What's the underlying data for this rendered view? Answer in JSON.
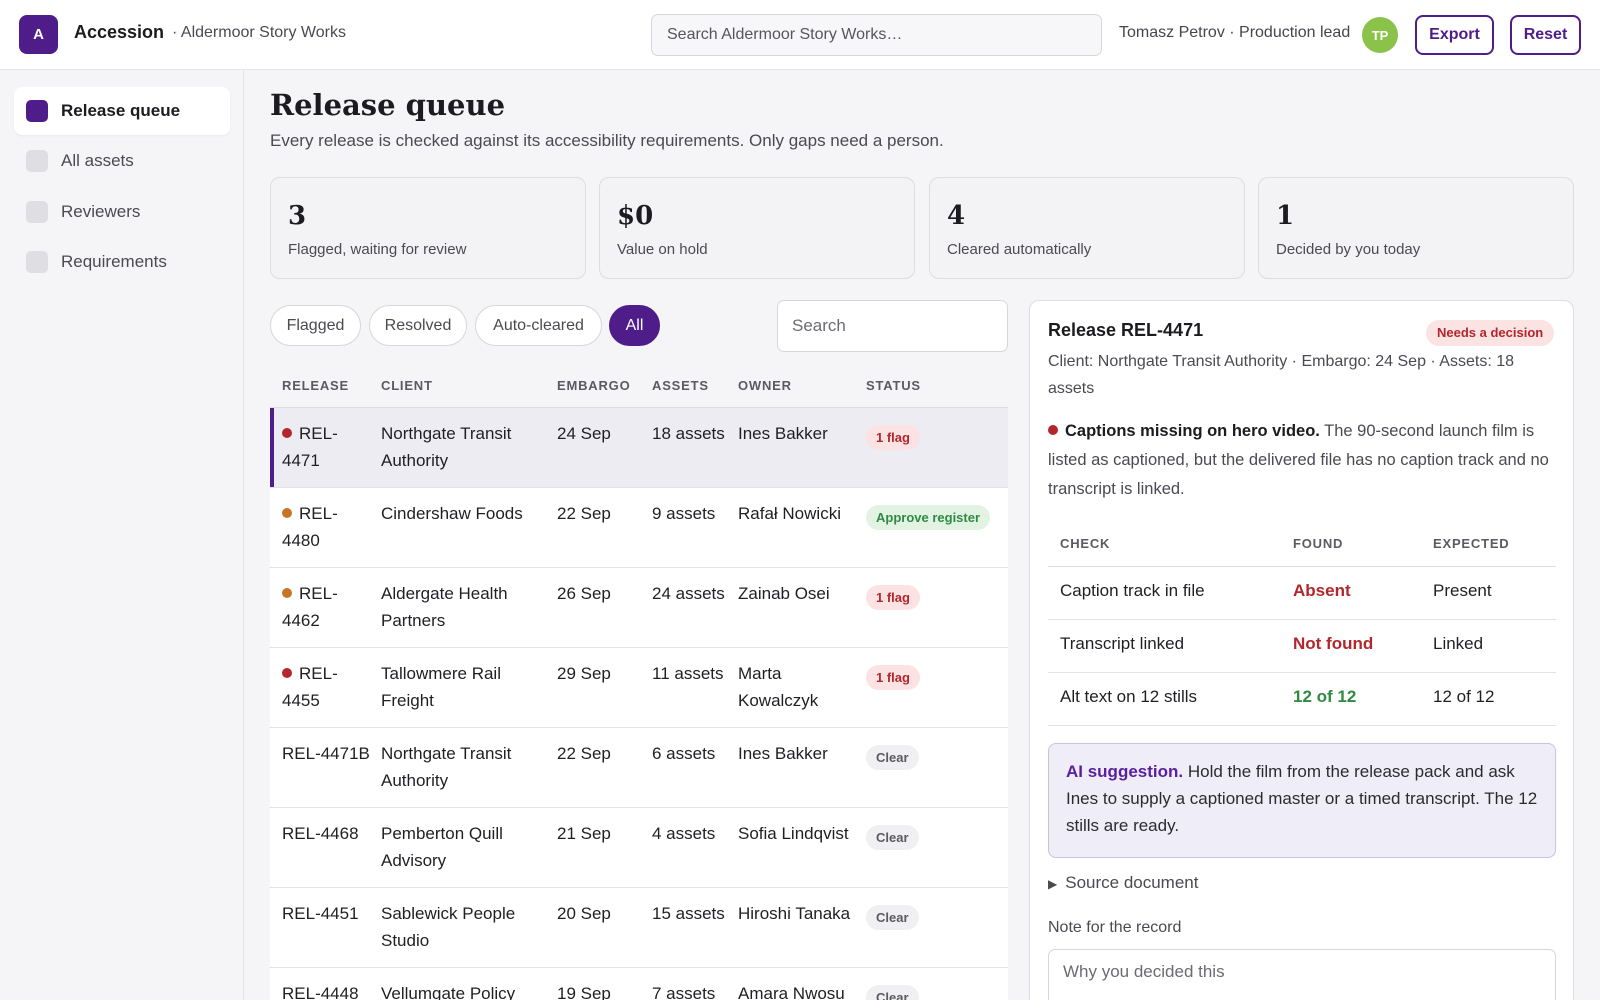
{
  "header": {
    "logo_letter": "A",
    "app_name": "Accession",
    "org": "· Aldermoor Story Works",
    "search_placeholder": "Search Aldermoor Story Works…",
    "user": "Tomasz Petrov · Production lead",
    "avatar_initials": "TP",
    "export_label": "Export",
    "reset_label": "Reset"
  },
  "sidebar": {
    "items": [
      {
        "label": "Release queue",
        "active": true
      },
      {
        "label": "All assets",
        "active": false
      },
      {
        "label": "Reviewers",
        "active": false
      },
      {
        "label": "Requirements",
        "active": false
      }
    ]
  },
  "main": {
    "title": "Release queue",
    "subtitle": "Every release is checked against its accessibility requirements. Only gaps need a person.",
    "stats": [
      {
        "value": "3",
        "label": "Flagged, waiting for review"
      },
      {
        "value": "$0",
        "label": "Value on hold"
      },
      {
        "value": "4",
        "label": "Cleared automatically"
      },
      {
        "value": "1",
        "label": "Decided by you today"
      }
    ],
    "filters": [
      "Flagged",
      "Resolved",
      "Auto-cleared",
      "All"
    ],
    "active_filter": "All",
    "search_placeholder": "Search",
    "columns": [
      "RELEASE",
      "CLIENT",
      "EMBARGO",
      "ASSETS",
      "OWNER",
      "STATUS"
    ],
    "rows": [
      {
        "release": "REL-4471",
        "dot": "#b3262b",
        "client": "Northgate Transit Authority",
        "embargo": "24 Sep",
        "assets": "18 assets",
        "owner": "Ines Bakker",
        "status": "1 flag",
        "status_kind": "flag",
        "selected": true
      },
      {
        "release": "REL-4480",
        "dot": "#c4752a",
        "client": "Cindershaw Foods",
        "embargo": "22 Sep",
        "assets": "9 assets",
        "owner": "Rafał Nowicki",
        "status": "Approve register",
        "status_kind": "approve"
      },
      {
        "release": "REL-4462",
        "dot": "#c4752a",
        "client": "Aldergate Health Partners",
        "embargo": "26 Sep",
        "assets": "24 assets",
        "owner": "Zainab Osei",
        "status": "1 flag",
        "status_kind": "flag"
      },
      {
        "release": "REL-4455",
        "dot": "#b3262b",
        "client": "Tallowmere Rail Freight",
        "embargo": "29 Sep",
        "assets": "11 assets",
        "owner": "Marta Kowalczyk",
        "status": "1 flag",
        "status_kind": "flag"
      },
      {
        "release": "REL-4471B",
        "dot": "",
        "client": "Northgate Transit Authority",
        "embargo": "22 Sep",
        "assets": "6 assets",
        "owner": "Ines Bakker",
        "status": "Clear",
        "status_kind": "clear"
      },
      {
        "release": "REL-4468",
        "dot": "",
        "client": "Pemberton Quill Advisory",
        "embargo": "21 Sep",
        "assets": "4 assets",
        "owner": "Sofia Lindqvist",
        "status": "Clear",
        "status_kind": "clear"
      },
      {
        "release": "REL-4451",
        "dot": "",
        "client": "Sablewick People Studio",
        "embargo": "20 Sep",
        "assets": "15 assets",
        "owner": "Hiroshi Tanaka",
        "status": "Clear",
        "status_kind": "clear"
      },
      {
        "release": "REL-4448",
        "dot": "",
        "client": "Vellumgate Policy",
        "embargo": "19 Sep",
        "assets": "7 assets",
        "owner": "Amara Nwosu",
        "status": "Clear",
        "status_kind": "clear"
      }
    ]
  },
  "detail": {
    "title": "Release REL-4471",
    "badge": "Needs a decision",
    "meta": "Client: Northgate Transit Authority · Embargo: 24 Sep · Assets: 18 assets",
    "issue_title": "Captions missing on hero video.",
    "issue_text": " The 90-second launch film is listed as captioned, but the delivered file has no caption track and no transcript is linked.",
    "check_columns": [
      "CHECK",
      "FOUND",
      "EXPECTED"
    ],
    "checks": [
      {
        "check": "Caption track in file",
        "found": "Absent",
        "expected": "Present",
        "ok": false
      },
      {
        "check": "Transcript linked",
        "found": "Not found",
        "expected": "Linked",
        "ok": false
      },
      {
        "check": "Alt text on 12 stills",
        "found": "12 of 12",
        "expected": "12 of 12",
        "ok": true
      }
    ],
    "ai_label": "AI suggestion.",
    "ai_text": " Hold the film from the release pack and ask Ines to supply a captioned master or a timed transcript. The 12 stills are ready.",
    "source_label": "Source document",
    "note_label": "Note for the record",
    "note_placeholder": "Why you decided this"
  },
  "colors": {
    "accent": "#4e1d8a",
    "flag": "#b3262b",
    "ok": "#2f8a42"
  },
  "icons": {
    "disclosure": "triangle-right-icon",
    "status_dot": "status-dot-icon"
  }
}
